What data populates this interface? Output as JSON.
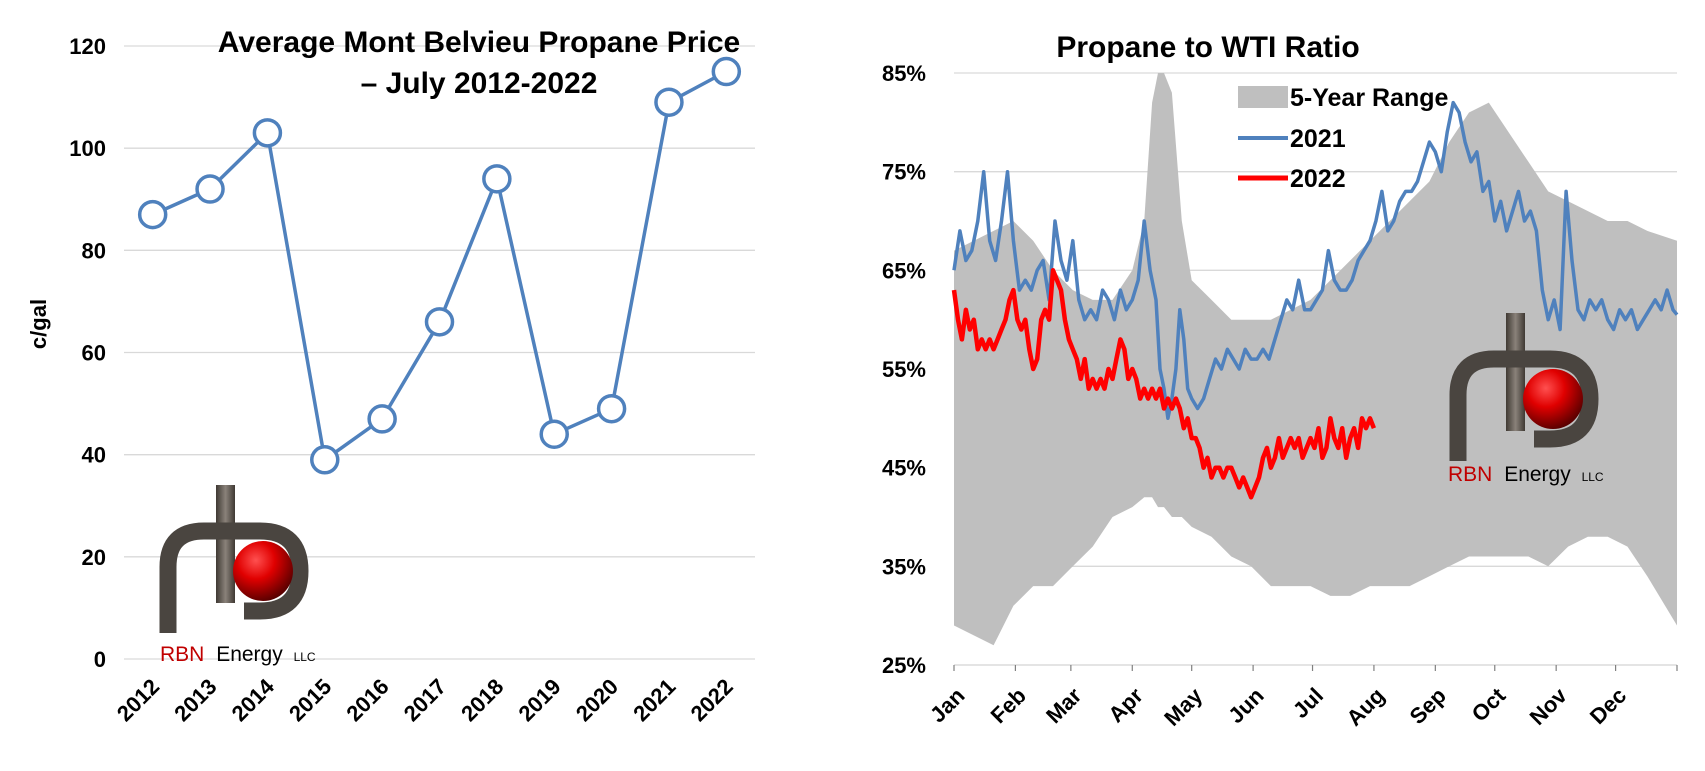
{
  "chart_data": [
    {
      "type": "line",
      "title": [
        "Average Mont Belvieu Propane Price",
        "– July 2012-2022"
      ],
      "ylabel": "c/gal",
      "xlabel": "",
      "ylim": [
        0,
        120
      ],
      "yticks": [
        "0",
        "20",
        "40",
        "60",
        "80",
        "100",
        "120"
      ],
      "categories": [
        "2012",
        "2013",
        "2014",
        "2015",
        "2016",
        "2017",
        "2018",
        "2019",
        "2020",
        "2021",
        "2022"
      ],
      "values": [
        87,
        92,
        103,
        39,
        47,
        66,
        94,
        44,
        49,
        109,
        115
      ],
      "grid": true,
      "marker": "hollow-circle",
      "colors": {
        "line": "#4f81bd"
      }
    },
    {
      "type": "line",
      "title": "Propane to WTI Ratio",
      "ylim": [
        0.25,
        0.85
      ],
      "yticks": [
        "25%",
        "35%",
        "45%",
        "55%",
        "65%",
        "75%",
        "85%"
      ],
      "xlim_days": [
        0,
        365
      ],
      "months": [
        "Jan",
        "Feb",
        "Mar",
        "Apr",
        "May",
        "Jun",
        "Jul",
        "Aug",
        "Sep",
        "Oct",
        "Nov",
        "Dec"
      ],
      "grid": true,
      "legend": {
        "placement": "top-center",
        "entries": [
          "5-Year Range",
          "2021",
          "2022"
        ]
      },
      "colors": {
        "range": "#bfbfbf",
        "s2021": "#4f81bd",
        "s2022": "#ff0000"
      },
      "range": {
        "name": "5-Year Range",
        "x": [
          0,
          10,
          20,
          30,
          40,
          50,
          60,
          70,
          80,
          90,
          96,
          100,
          103,
          106,
          110,
          115,
          120,
          130,
          140,
          150,
          160,
          170,
          180,
          190,
          200,
          210,
          220,
          230,
          240,
          250,
          260,
          270,
          280,
          290,
          300,
          310,
          320,
          330,
          340,
          350,
          365
        ],
        "low": [
          0.29,
          0.28,
          0.27,
          0.31,
          0.33,
          0.33,
          0.35,
          0.37,
          0.4,
          0.41,
          0.42,
          0.42,
          0.41,
          0.41,
          0.4,
          0.4,
          0.39,
          0.38,
          0.36,
          0.35,
          0.33,
          0.33,
          0.33,
          0.32,
          0.32,
          0.33,
          0.33,
          0.33,
          0.34,
          0.35,
          0.36,
          0.36,
          0.36,
          0.36,
          0.35,
          0.37,
          0.38,
          0.38,
          0.37,
          0.34,
          0.29
        ],
        "high": [
          0.67,
          0.68,
          0.69,
          0.7,
          0.68,
          0.65,
          0.63,
          0.62,
          0.62,
          0.65,
          0.7,
          0.82,
          0.86,
          0.86,
          0.83,
          0.7,
          0.64,
          0.62,
          0.6,
          0.6,
          0.6,
          0.61,
          0.62,
          0.64,
          0.66,
          0.68,
          0.7,
          0.72,
          0.74,
          0.78,
          0.81,
          0.82,
          0.79,
          0.76,
          0.73,
          0.72,
          0.71,
          0.7,
          0.7,
          0.69,
          0.68
        ]
      },
      "series": [
        {
          "name": "2021",
          "x": [
            0,
            3,
            6,
            9,
            12,
            15,
            18,
            21,
            24,
            27,
            30,
            33,
            36,
            39,
            42,
            45,
            48,
            51,
            54,
            57,
            60,
            63,
            66,
            69,
            72,
            75,
            78,
            81,
            84,
            87,
            90,
            93,
            96,
            99,
            102,
            104,
            106,
            108,
            110,
            112,
            114,
            116,
            118,
            120,
            123,
            126,
            129,
            132,
            135,
            138,
            141,
            144,
            147,
            150,
            153,
            156,
            159,
            162,
            165,
            168,
            171,
            174,
            177,
            180,
            183,
            186,
            189,
            192,
            195,
            198,
            201,
            204,
            207,
            210,
            213,
            216,
            219,
            222,
            225,
            228,
            231,
            234,
            237,
            240,
            243,
            246,
            249,
            252,
            255,
            258,
            261,
            264,
            267,
            270,
            273,
            276,
            279,
            282,
            285,
            288,
            291,
            294,
            297,
            300,
            303,
            306,
            309,
            312,
            315,
            318,
            321,
            324,
            327,
            330,
            333,
            336,
            339,
            342,
            345,
            348,
            351,
            354,
            357,
            360,
            363,
            365
          ],
          "values": [
            0.65,
            0.69,
            0.66,
            0.67,
            0.7,
            0.75,
            0.68,
            0.66,
            0.7,
            0.75,
            0.68,
            0.63,
            0.64,
            0.63,
            0.65,
            0.66,
            0.62,
            0.7,
            0.66,
            0.64,
            0.68,
            0.62,
            0.6,
            0.61,
            0.6,
            0.63,
            0.62,
            0.6,
            0.63,
            0.61,
            0.62,
            0.64,
            0.7,
            0.65,
            0.62,
            0.55,
            0.53,
            0.5,
            0.52,
            0.55,
            0.61,
            0.58,
            0.53,
            0.52,
            0.51,
            0.52,
            0.54,
            0.56,
            0.55,
            0.57,
            0.56,
            0.55,
            0.57,
            0.56,
            0.56,
            0.57,
            0.56,
            0.58,
            0.6,
            0.62,
            0.61,
            0.64,
            0.61,
            0.61,
            0.62,
            0.63,
            0.67,
            0.64,
            0.63,
            0.63,
            0.64,
            0.66,
            0.67,
            0.68,
            0.7,
            0.73,
            0.69,
            0.7,
            0.72,
            0.73,
            0.73,
            0.74,
            0.76,
            0.78,
            0.77,
            0.75,
            0.79,
            0.82,
            0.81,
            0.78,
            0.76,
            0.77,
            0.73,
            0.74,
            0.7,
            0.72,
            0.69,
            0.71,
            0.73,
            0.7,
            0.71,
            0.69,
            0.63,
            0.6,
            0.62,
            0.59,
            0.73,
            0.66,
            0.61,
            0.6,
            0.62,
            0.61,
            0.62,
            0.6,
            0.59,
            0.61,
            0.6,
            0.61,
            0.59,
            0.6,
            0.61,
            0.62,
            0.61,
            0.63,
            0.61,
            0.605
          ]
        },
        {
          "name": "2022",
          "x": [
            0,
            2,
            4,
            6,
            8,
            10,
            12,
            14,
            16,
            18,
            20,
            22,
            24,
            26,
            28,
            30,
            32,
            34,
            36,
            38,
            40,
            42,
            44,
            46,
            48,
            50,
            52,
            54,
            56,
            58,
            60,
            62,
            64,
            66,
            68,
            70,
            72,
            74,
            76,
            78,
            80,
            82,
            84,
            86,
            88,
            90,
            92,
            94,
            96,
            98,
            100,
            102,
            104,
            106,
            108,
            110,
            112,
            114,
            116,
            118,
            120,
            122,
            124,
            126,
            128,
            130,
            132,
            134,
            136,
            138,
            140,
            142,
            144,
            146,
            148,
            150,
            152,
            154,
            156,
            158,
            160,
            162,
            164,
            166,
            168,
            170,
            172,
            174,
            176,
            178,
            180,
            182,
            184,
            186,
            188,
            190,
            192,
            194,
            196,
            198,
            200,
            202,
            204,
            206,
            208,
            210,
            212
          ],
          "values": [
            0.63,
            0.6,
            0.58,
            0.61,
            0.59,
            0.6,
            0.57,
            0.58,
            0.57,
            0.58,
            0.57,
            0.58,
            0.59,
            0.6,
            0.62,
            0.63,
            0.6,
            0.59,
            0.6,
            0.57,
            0.55,
            0.56,
            0.6,
            0.61,
            0.6,
            0.65,
            0.64,
            0.63,
            0.6,
            0.58,
            0.57,
            0.56,
            0.54,
            0.56,
            0.53,
            0.54,
            0.53,
            0.54,
            0.53,
            0.55,
            0.54,
            0.56,
            0.58,
            0.57,
            0.54,
            0.55,
            0.54,
            0.52,
            0.53,
            0.52,
            0.53,
            0.52,
            0.53,
            0.51,
            0.52,
            0.51,
            0.52,
            0.51,
            0.49,
            0.5,
            0.48,
            0.48,
            0.47,
            0.45,
            0.46,
            0.44,
            0.45,
            0.45,
            0.44,
            0.45,
            0.45,
            0.44,
            0.43,
            0.44,
            0.43,
            0.42,
            0.43,
            0.44,
            0.46,
            0.47,
            0.45,
            0.46,
            0.48,
            0.46,
            0.47,
            0.48,
            0.47,
            0.48,
            0.46,
            0.47,
            0.48,
            0.47,
            0.49,
            0.46,
            0.47,
            0.5,
            0.48,
            0.47,
            0.49,
            0.46,
            0.48,
            0.49,
            0.47,
            0.5,
            0.49,
            0.5,
            0.49
          ]
        }
      ]
    }
  ],
  "logos": [
    {
      "brand_red": "RBN",
      "brand_rest": "Energy",
      "suffix": "LLC"
    },
    {
      "brand_red": "RBN",
      "brand_rest": "Energy",
      "suffix": "LLC"
    }
  ]
}
